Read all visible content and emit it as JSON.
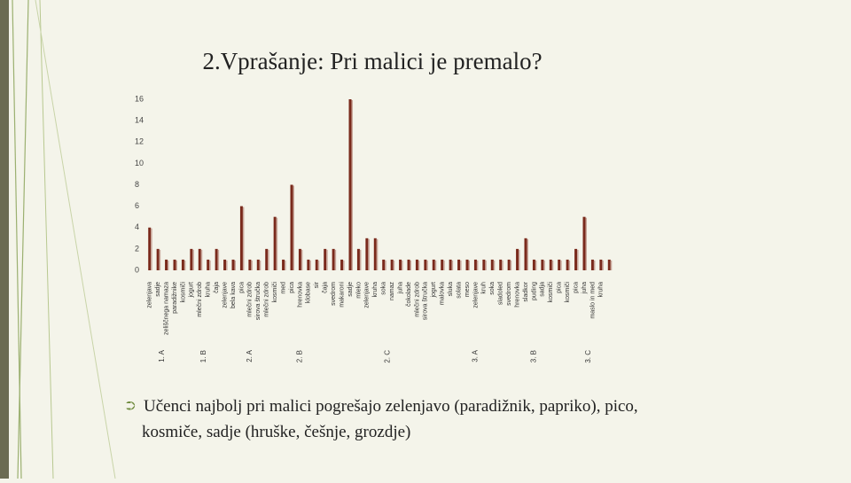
{
  "slide_title": "2.Vprašanje: Pri malici je premalo?",
  "chart_data": {
    "type": "bar",
    "color": "#7a2a1c",
    "ylim": [
      0,
      16
    ],
    "yticks": [
      0,
      2,
      4,
      6,
      8,
      10,
      12,
      14,
      16
    ],
    "groups": [
      {
        "name": "1. A",
        "categories": [
          "zelenjava",
          "sadje",
          "zeliščnega namaza",
          "paradižnike"
        ],
        "values": [
          4,
          2,
          1,
          1
        ]
      },
      {
        "name": "1. B",
        "categories": [
          "kosmiči",
          "jogurt",
          "mlečni zdrob",
          "kruha",
          "čaja",
          "zelenjave"
        ],
        "values": [
          1,
          2,
          2,
          1,
          2,
          1
        ]
      },
      {
        "name": "2. A",
        "categories": [
          "bela kava",
          "pica",
          "mlečni zdrob",
          "sirova štručka",
          "mlečni zdrob"
        ],
        "values": [
          1,
          6,
          1,
          1,
          2
        ]
      },
      {
        "name": "2. B",
        "categories": [
          "kosmiči",
          "med",
          "pica",
          "hrenovka",
          "klobase",
          "sir",
          "čaja"
        ],
        "values": [
          5,
          1,
          8,
          2,
          1,
          1,
          2
        ]
      },
      {
        "name": "2. C",
        "categories": [
          "svedrom",
          "makaroni",
          "sadje",
          "mleko",
          "zelenjave",
          "kruha",
          "soka",
          "namaz",
          "juha",
          "čokolade",
          "mlečni zdrob",
          "sirova štručka",
          "jogurt",
          "malovka"
        ],
        "values": [
          2,
          1,
          16,
          2,
          3,
          3,
          1,
          1,
          1,
          1,
          1,
          1,
          1,
          1
        ]
      },
      {
        "name": "3. A",
        "categories": [
          "sluka",
          "solata",
          "meso",
          "zelenjave",
          "kruh",
          "soka",
          "sladoled"
        ],
        "values": [
          1,
          1,
          1,
          1,
          1,
          1,
          1
        ]
      },
      {
        "name": "3. B",
        "categories": [
          "svedrom",
          "hrenovka",
          "sladkor",
          "puding",
          "sadja",
          "kosmiči",
          "pica"
        ],
        "values": [
          1,
          2,
          3,
          1,
          1,
          1,
          1
        ]
      },
      {
        "name": "3. C",
        "categories": [
          "kosmiči",
          "pica",
          "juha",
          "maslo in med",
          "kruha",
          null
        ],
        "values": [
          1,
          2,
          5,
          1,
          1,
          1
        ]
      }
    ]
  },
  "bullet": "Učenci najbolj pri malici pogrešajo zelenjavo (paradižnik, papriko), pico, kosmiče, sadje (hruške, češnje, grozdje)"
}
